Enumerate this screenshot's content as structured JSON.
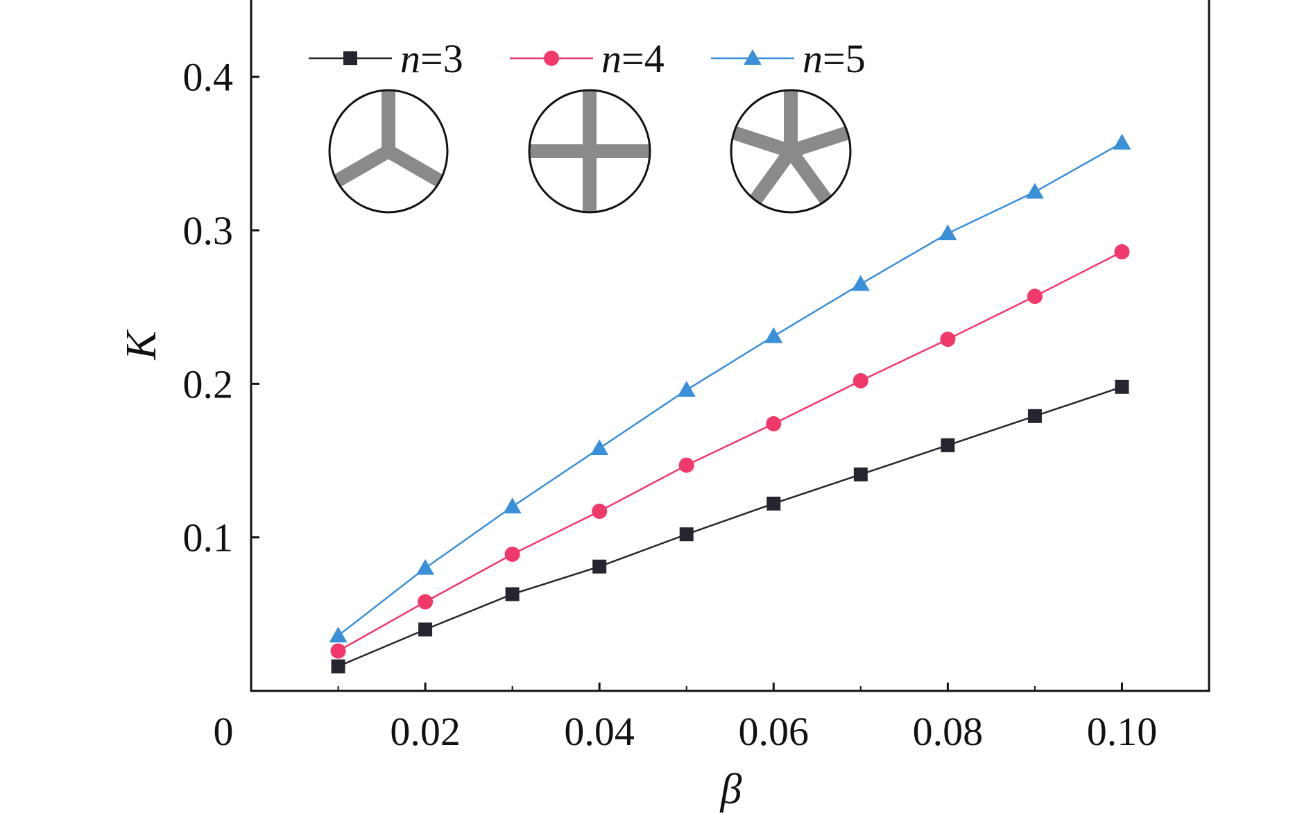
{
  "chart_data": {
    "type": "line",
    "xlabel": "β",
    "ylabel": "K",
    "xlim": [
      0,
      0.11
    ],
    "ylim": [
      0,
      0.45
    ],
    "x_ticks": [
      {
        "value": 0,
        "label": "0"
      },
      {
        "value": 0.02,
        "label": "0.02"
      },
      {
        "value": 0.04,
        "label": "0.04"
      },
      {
        "value": 0.06,
        "label": "0.06"
      },
      {
        "value": 0.08,
        "label": "0.08"
      },
      {
        "value": 0.1,
        "label": "0.10"
      }
    ],
    "y_ticks": [
      {
        "value": 0.1,
        "label": "0.1"
      },
      {
        "value": 0.2,
        "label": "0.2"
      },
      {
        "value": 0.3,
        "label": "0.3"
      },
      {
        "value": 0.4,
        "label": "0.4"
      }
    ],
    "x": [
      0.01,
      0.02,
      0.03,
      0.04,
      0.05,
      0.06,
      0.07,
      0.08,
      0.09,
      0.1
    ],
    "series": [
      {
        "name_var": "n",
        "name_rest": "=3",
        "marker": "square",
        "color": "#25252f",
        "values": [
          0.016,
          0.04,
          0.063,
          0.081,
          0.102,
          0.122,
          0.141,
          0.16,
          0.179,
          0.198
        ]
      },
      {
        "name_var": "n",
        "name_rest": "=4",
        "marker": "circle",
        "color": "#f0386b",
        "values": [
          0.026,
          0.058,
          0.089,
          0.117,
          0.147,
          0.174,
          0.202,
          0.229,
          0.257,
          0.286
        ]
      },
      {
        "name_var": "n",
        "name_rest": "=5",
        "marker": "triangle",
        "color": "#3a8fd9",
        "values": [
          0.036,
          0.08,
          0.12,
          0.158,
          0.196,
          0.231,
          0.265,
          0.298,
          0.325,
          0.357
        ]
      }
    ],
    "grid": false,
    "legend_position": "top-left",
    "inset_icons": [
      {
        "name": "three-spoke-cross-section-icon",
        "spokes": 3
      },
      {
        "name": "four-spoke-cross-section-icon",
        "spokes": 4
      },
      {
        "name": "five-spoke-cross-section-icon",
        "spokes": 5
      }
    ],
    "icon_colors": {
      "spoke": "#8a8a8a",
      "outline": "#111111"
    }
  }
}
